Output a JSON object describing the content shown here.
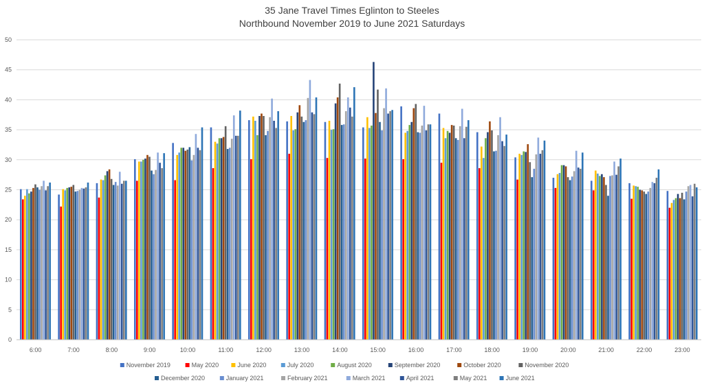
{
  "chart_data": {
    "type": "bar",
    "title": "35 Jane Travel Times Eglinton to Steeles",
    "subtitle": "Northbound November 2019 to June 2021 Saturdays",
    "xlabel": "",
    "ylabel": "",
    "ylim": [
      0,
      50
    ],
    "yticks": [
      0,
      5,
      10,
      15,
      20,
      25,
      30,
      35,
      40,
      45,
      50
    ],
    "grid": true,
    "legend_position": "bottom",
    "categories": [
      "6:00",
      "7:00",
      "8:00",
      "9:00",
      "10:00",
      "11:00",
      "12:00",
      "13:00",
      "14:00",
      "15:00",
      "16:00",
      "17:00",
      "18:00",
      "19:00",
      "20:00",
      "21:00",
      "22:00",
      "23:00"
    ],
    "series": [
      {
        "name": "November 2019",
        "color": "#4472C4",
        "values": [
          25.1,
          24.2,
          26.1,
          30.1,
          32.8,
          35.4,
          36.6,
          36.4,
          36.3,
          35.4,
          38.9,
          37.7,
          34.6,
          30.4,
          27.0,
          26.5,
          26.1,
          24.8
        ]
      },
      {
        "name": "May 2020",
        "color": "#FF0000",
        "values": [
          23.4,
          22.2,
          23.7,
          26.5,
          26.6,
          28.6,
          30.1,
          31.0,
          30.3,
          30.2,
          30.1,
          29.5,
          28.6,
          26.7,
          25.3,
          24.9,
          23.5,
          22.0
        ]
      },
      {
        "name": "June 2020",
        "color": "#FFC000",
        "values": [
          24.0,
          25.1,
          26.7,
          29.7,
          30.8,
          33.0,
          37.2,
          37.3,
          36.5,
          37.1,
          34.5,
          35.3,
          32.2,
          31.0,
          27.6,
          28.2,
          25.7,
          22.8
        ]
      },
      {
        "name": "July 2020",
        "color": "#5B9BD5",
        "values": [
          25.1,
          24.9,
          26.6,
          29.7,
          31.2,
          32.7,
          36.5,
          34.9,
          35.0,
          35.3,
          34.8,
          33.6,
          30.3,
          30.8,
          27.8,
          27.7,
          25.6,
          23.3
        ]
      },
      {
        "name": "August 2020",
        "color": "#70AD47",
        "values": [
          24.4,
          25.3,
          27.4,
          30.0,
          32.0,
          33.6,
          34.1,
          35.1,
          35.1,
          35.7,
          35.8,
          34.8,
          33.6,
          31.4,
          29.1,
          27.3,
          25.5,
          23.6
        ]
      },
      {
        "name": "September 2020",
        "color": "#264478",
        "values": [
          24.7,
          25.4,
          28.1,
          30.2,
          32.0,
          33.6,
          37.3,
          37.9,
          39.4,
          46.3,
          36.3,
          34.5,
          34.6,
          31.3,
          29.1,
          27.6,
          25.0,
          24.3
        ]
      },
      {
        "name": "October 2020",
        "color": "#9E480E",
        "values": [
          25.3,
          25.5,
          28.4,
          30.8,
          31.5,
          33.8,
          37.7,
          39.1,
          40.4,
          37.8,
          38.6,
          35.8,
          36.4,
          32.6,
          28.9,
          27.1,
          24.9,
          23.6
        ]
      },
      {
        "name": "November 2020",
        "color": "#636363",
        "values": [
          25.9,
          25.8,
          26.8,
          30.5,
          31.7,
          35.6,
          37.3,
          37.2,
          42.7,
          41.7,
          39.3,
          35.7,
          34.9,
          29.6,
          27.1,
          25.8,
          24.7,
          24.5
        ]
      },
      {
        "name": "December 2020",
        "color": "#255E91",
        "values": [
          25.4,
          24.7,
          25.8,
          28.2,
          32.1,
          31.8,
          34.1,
          36.3,
          35.8,
          36.3,
          34.6,
          33.6,
          31.4,
          27.1,
          26.6,
          24.0,
          24.3,
          23.4
        ]
      },
      {
        "name": "January 2021",
        "color": "#698ED0",
        "values": [
          25.0,
          24.8,
          26.3,
          27.6,
          29.9,
          32.0,
          34.8,
          36.6,
          35.9,
          34.9,
          34.5,
          33.3,
          31.5,
          28.5,
          27.2,
          27.3,
          24.7,
          24.7
        ]
      },
      {
        "name": "February 2021",
        "color": "#A5A5A5",
        "values": [
          25.6,
          25.0,
          25.7,
          28.3,
          30.8,
          33.5,
          37.1,
          40.3,
          38.1,
          38.6,
          35.7,
          35.6,
          34.1,
          30.9,
          28.1,
          27.4,
          25.3,
          25.6
        ]
      },
      {
        "name": "March 2021",
        "color": "#8FAADC",
        "values": [
          26.5,
          25.3,
          28.0,
          31.2,
          34.3,
          37.4,
          40.2,
          43.3,
          40.4,
          41.9,
          39.0,
          38.5,
          37.1,
          33.7,
          31.5,
          29.7,
          26.3,
          25.8
        ]
      },
      {
        "name": "April 2021",
        "color": "#2F5597",
        "values": [
          24.9,
          25.2,
          26.0,
          29.5,
          32.0,
          34.0,
          36.5,
          37.9,
          38.7,
          37.7,
          34.9,
          33.6,
          33.1,
          31.0,
          28.7,
          27.5,
          26.1,
          23.9
        ]
      },
      {
        "name": "May 2021",
        "color": "#7F7F7F",
        "values": [
          25.6,
          25.4,
          26.5,
          28.6,
          31.6,
          34.0,
          35.3,
          37.6,
          37.2,
          38.1,
          35.9,
          35.5,
          32.3,
          31.6,
          28.5,
          28.9,
          27.0,
          26.0
        ]
      },
      {
        "name": "June 2021",
        "color": "#2E75B6",
        "values": [
          26.2,
          26.2,
          26.5,
          31.1,
          35.4,
          38.2,
          38.1,
          40.4,
          42.1,
          38.3,
          35.9,
          36.6,
          34.2,
          33.2,
          31.2,
          30.2,
          28.4,
          25.4
        ]
      }
    ]
  }
}
